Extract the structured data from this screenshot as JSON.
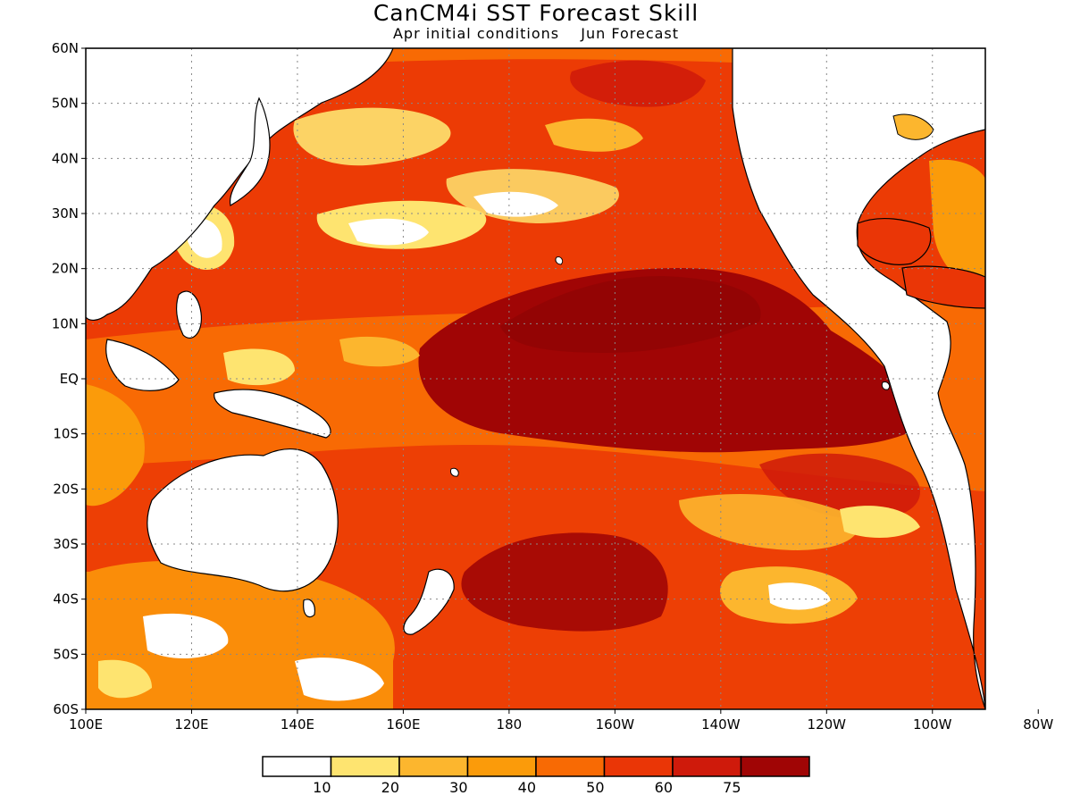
{
  "title": "CanCM4i SST Forecast Skill",
  "subtitle_left": "Apr initial conditions",
  "subtitle_right": "Jun Forecast",
  "lat_ticks": [
    "60N",
    "50N",
    "40N",
    "30N",
    "20N",
    "10N",
    "EQ",
    "10S",
    "20S",
    "30S",
    "40S",
    "50S",
    "60S"
  ],
  "lon_ticks": [
    "100E",
    "120E",
    "140E",
    "160E",
    "180",
    "160W",
    "140W",
    "120W",
    "100W",
    "80W"
  ],
  "legend": {
    "colors": [
      "#ffffff",
      "#fee470",
      "#fcb62e",
      "#fb9b0a",
      "#f86a04",
      "#ea3606",
      "#cf1a0b",
      "#a00505"
    ],
    "labels": [
      "10",
      "20",
      "30",
      "40",
      "50",
      "60",
      "75"
    ]
  },
  "chart_data": {
    "type": "heatmap",
    "title": "CanCM4i SST Forecast Skill",
    "subtitle": "Apr initial conditions  Jun Forecast",
    "xlim": [
      "100E",
      "70W"
    ],
    "ylim": [
      "60S",
      "60N"
    ],
    "grid": true,
    "color_scale": {
      "breaks": [
        10,
        20,
        30,
        40,
        50,
        60,
        75
      ],
      "colors": [
        "#ffffff",
        "#fee470",
        "#fcb62e",
        "#fb9b0a",
        "#f86a04",
        "#ea3606",
        "#cf1a0b",
        "#a00505"
      ]
    }
  }
}
